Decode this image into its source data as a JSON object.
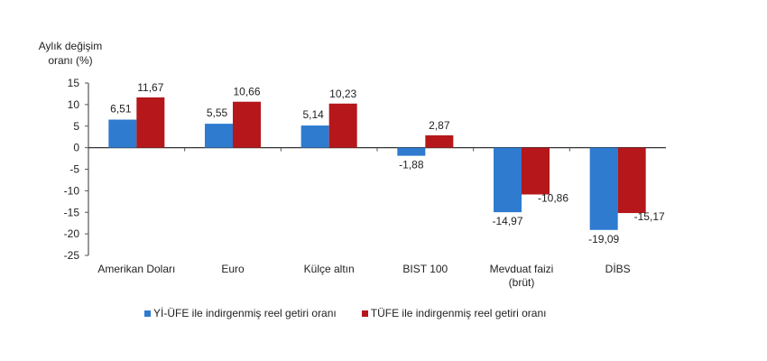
{
  "chart_data": {
    "type": "bar",
    "ylabel_lines": [
      "Aylık değişim",
      "oranı (%)"
    ],
    "ylim": [
      -25,
      15
    ],
    "yticks": [
      15,
      10,
      5,
      0,
      -5,
      -10,
      -15,
      -20,
      -25
    ],
    "categories": [
      [
        "Amerikan Doları"
      ],
      [
        "Euro"
      ],
      [
        "Külçe altın"
      ],
      [
        "BIST 100"
      ],
      [
        "Mevduat faizi",
        "(brüt)"
      ],
      [
        "DİBS"
      ]
    ],
    "series": [
      {
        "name": "Yİ-ÜFE ile indirgenmiş reel getiri oranı",
        "color": "#2e7bcf",
        "values": [
          6.51,
          5.55,
          5.14,
          -1.88,
          -14.97,
          -19.09
        ],
        "labels": [
          "6,51",
          "5,55",
          "5,14",
          "-1,88",
          "-14,97",
          "-19,09"
        ]
      },
      {
        "name": "TÜFE ile indirgenmiş reel getiri oranı",
        "color": "#b5171b",
        "values": [
          11.67,
          10.66,
          10.23,
          2.87,
          -10.86,
          -15.17
        ],
        "labels": [
          "11,67",
          "10,66",
          "10,23",
          "2,87",
          "-10,86",
          "-15,17"
        ]
      }
    ],
    "legend_position": "bottom",
    "grid": false
  }
}
